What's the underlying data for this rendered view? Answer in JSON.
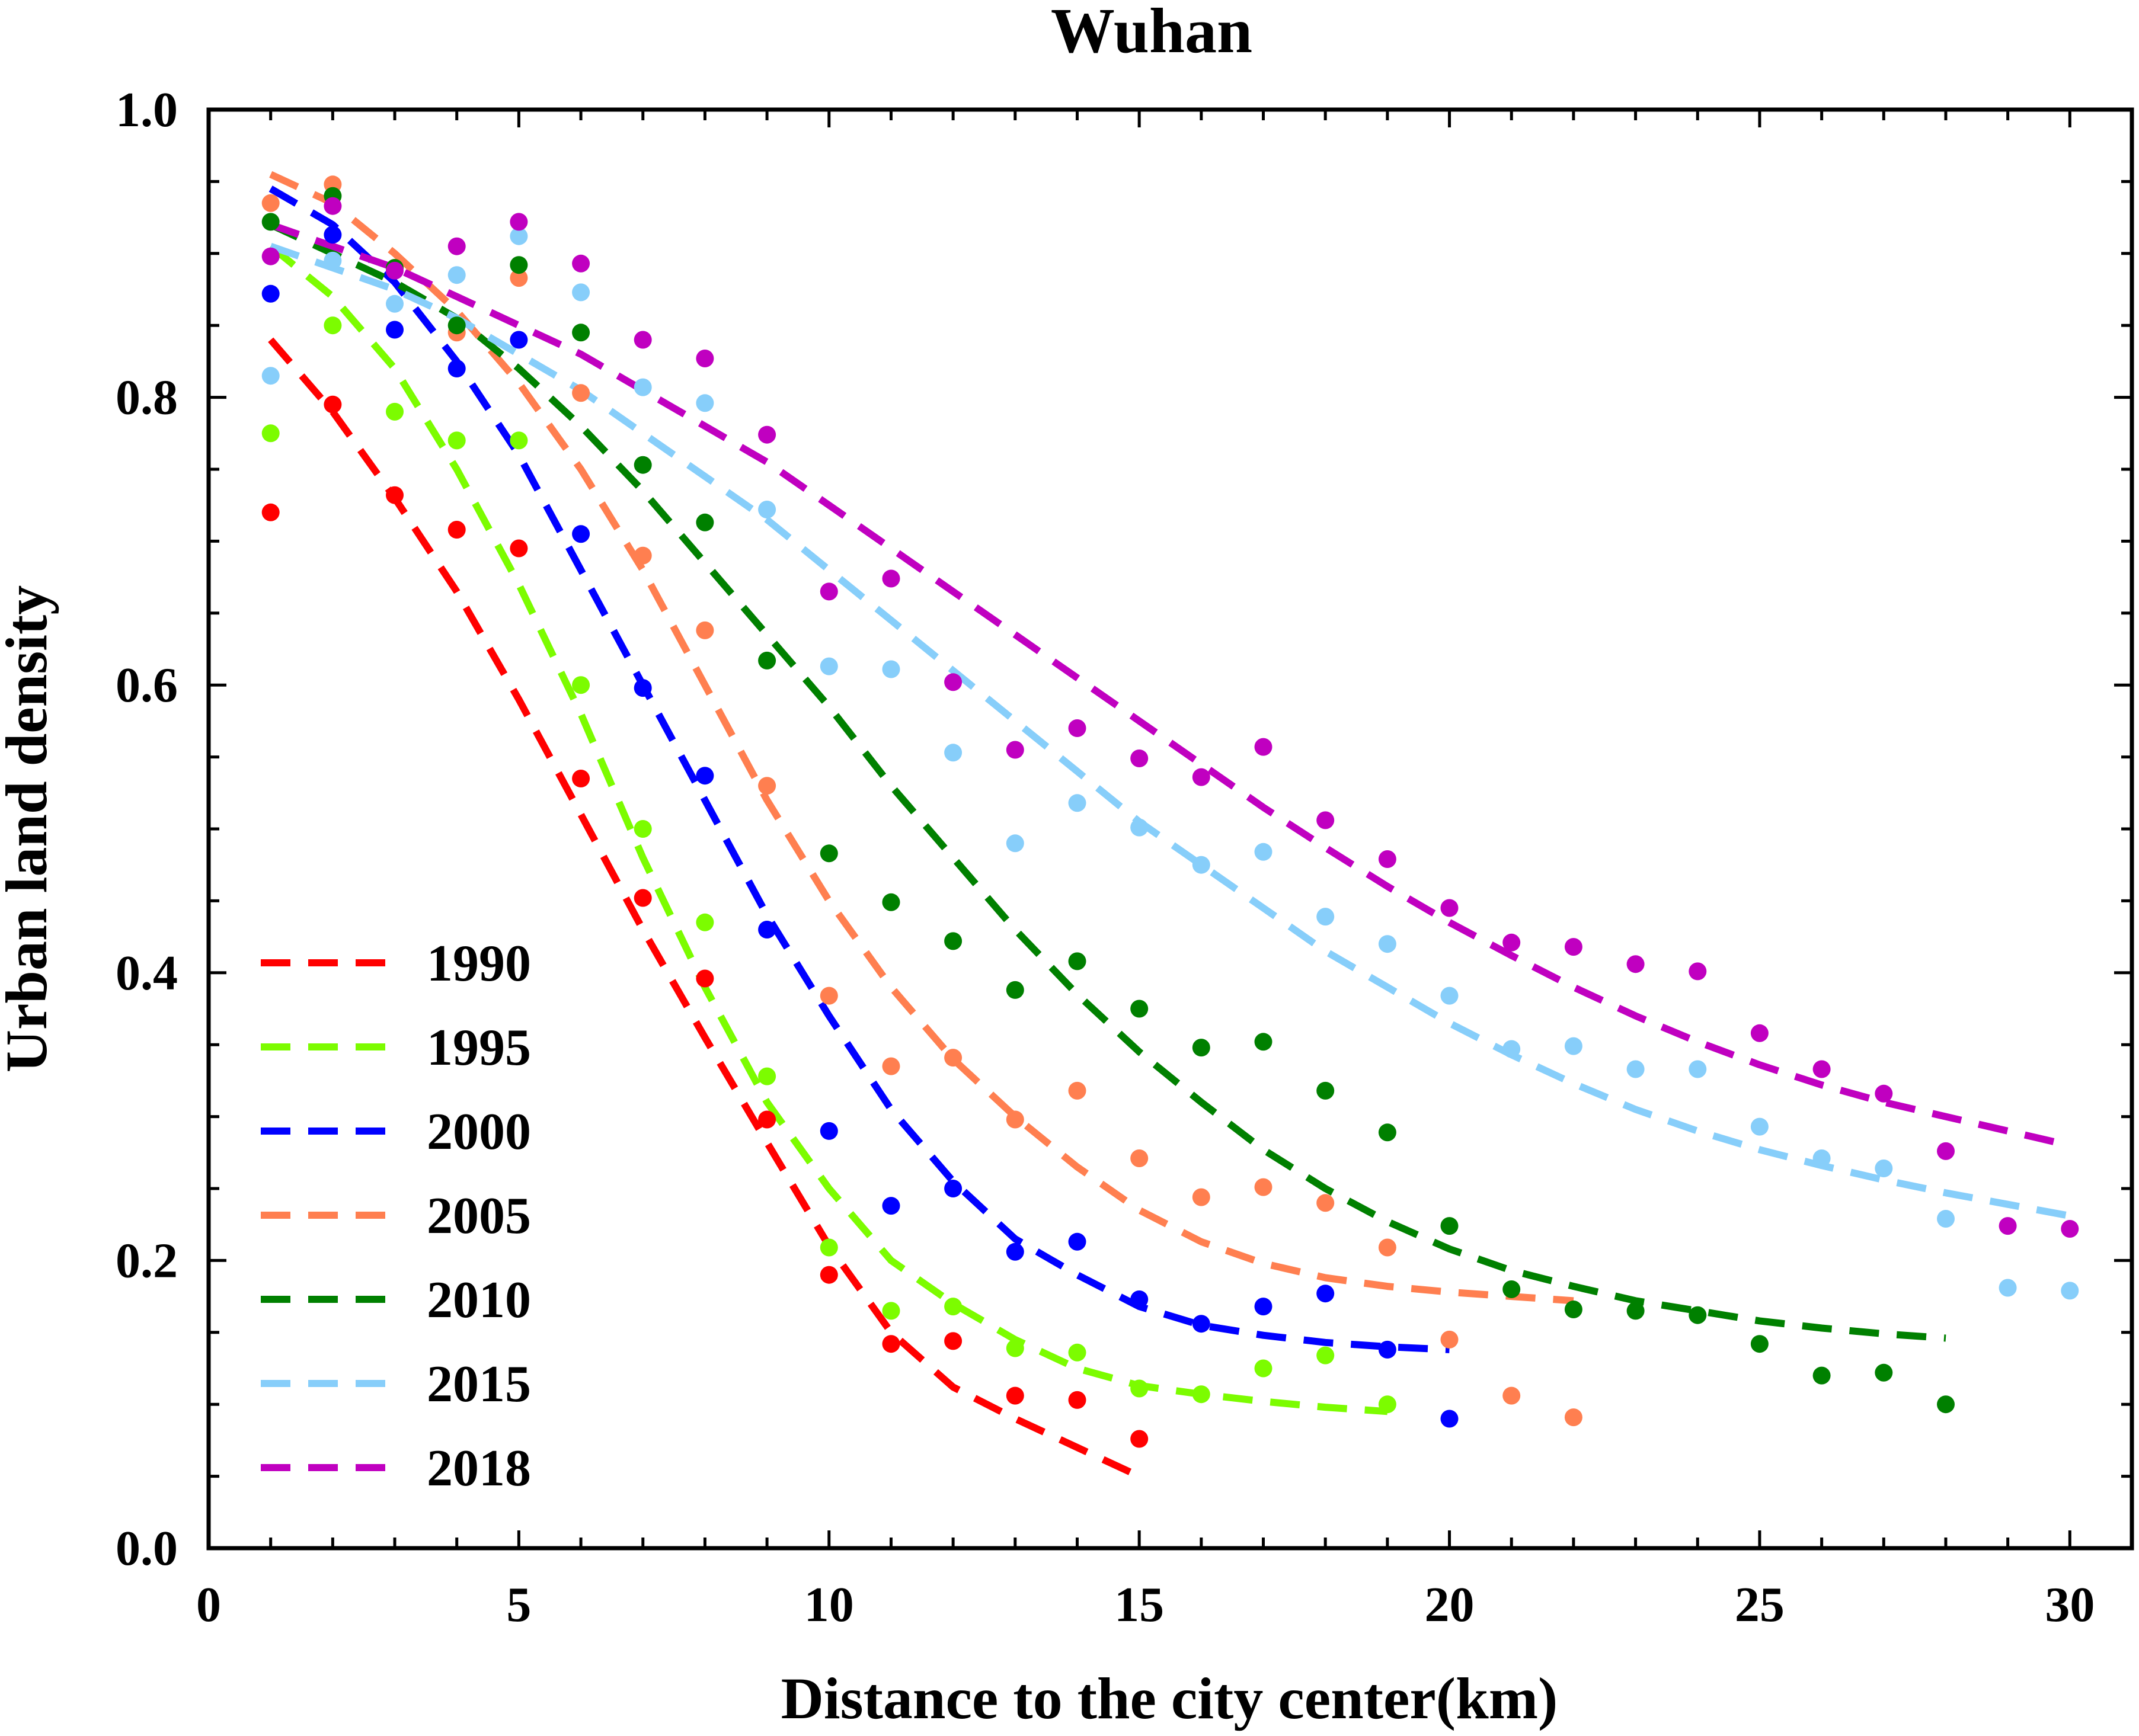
{
  "chart_data": {
    "type": "scatter",
    "title": "Wuhan",
    "xlabel": "Distance to the city center(km)",
    "ylabel": "Urban land density",
    "xlim": [
      0,
      31
    ],
    "ylim": [
      0.0,
      1.0
    ],
    "xticks": [
      0,
      5,
      10,
      15,
      20,
      25,
      30
    ],
    "xtick_labels": [
      "0",
      "5",
      "10",
      "15",
      "20",
      "25",
      "30"
    ],
    "yticks": [
      0.0,
      0.2,
      0.4,
      0.6,
      0.8,
      1.0
    ],
    "ytick_labels": [
      "0.0",
      "0.2",
      "0.4",
      "0.6",
      "0.8",
      "1.0"
    ],
    "grid": false,
    "legend_position": "bottom-left",
    "series": [
      {
        "name": "1990",
        "color": "#ff0000",
        "x": [
          1,
          2,
          3,
          4,
          5,
          6,
          7,
          8,
          9,
          10,
          11,
          12,
          13,
          14,
          15
        ],
        "y": [
          0.72,
          0.795,
          0.732,
          0.708,
          0.695,
          0.535,
          0.452,
          0.396,
          0.298,
          0.19,
          0.142,
          0.144,
          0.106,
          0.103,
          0.076
        ],
        "fit_x": [
          1,
          2,
          3,
          4,
          5,
          6,
          7,
          8,
          9,
          10,
          11,
          12,
          13,
          14,
          15
        ],
        "fit_y": [
          0.84,
          0.79,
          0.73,
          0.665,
          0.59,
          0.51,
          0.43,
          0.355,
          0.282,
          0.21,
          0.15,
          0.112,
          0.09,
          0.07,
          0.05
        ]
      },
      {
        "name": "1995",
        "color": "#7cfc00",
        "x": [
          1,
          2,
          3,
          4,
          5,
          6,
          7,
          8,
          9,
          10,
          11,
          12,
          13,
          14,
          15,
          16,
          17,
          18,
          19
        ],
        "y": [
          0.775,
          0.85,
          0.79,
          0.77,
          0.77,
          0.6,
          0.5,
          0.435,
          0.328,
          0.209,
          0.165,
          0.168,
          0.139,
          0.136,
          0.111,
          0.107,
          0.125,
          0.134,
          0.1
        ],
        "fit_x": [
          1,
          2,
          3,
          4,
          5,
          6,
          7,
          8,
          9,
          10,
          11,
          12,
          13,
          14,
          15,
          16,
          17,
          18,
          19
        ],
        "fit_y": [
          0.905,
          0.87,
          0.82,
          0.75,
          0.67,
          0.58,
          0.48,
          0.39,
          0.31,
          0.25,
          0.2,
          0.17,
          0.145,
          0.125,
          0.113,
          0.107,
          0.102,
          0.098,
          0.095
        ]
      },
      {
        "name": "2000",
        "color": "#0000ff",
        "x": [
          1,
          2,
          3,
          4,
          5,
          6,
          7,
          8,
          9,
          10,
          11,
          12,
          13,
          14,
          15,
          16,
          17,
          18,
          19,
          20
        ],
        "y": [
          0.872,
          0.913,
          0.847,
          0.82,
          0.84,
          0.705,
          0.598,
          0.537,
          0.43,
          0.29,
          0.238,
          0.25,
          0.206,
          0.213,
          0.173,
          0.156,
          0.168,
          0.177,
          0.138,
          0.09
        ],
        "fit_x": [
          1,
          2,
          3,
          4,
          5,
          6,
          7,
          8,
          9,
          10,
          11,
          12,
          13,
          14,
          15,
          16,
          17,
          18,
          19,
          20
        ],
        "fit_y": [
          0.945,
          0.92,
          0.88,
          0.825,
          0.76,
          0.68,
          0.6,
          0.52,
          0.44,
          0.37,
          0.305,
          0.255,
          0.215,
          0.19,
          0.168,
          0.155,
          0.148,
          0.143,
          0.14,
          0.138
        ]
      },
      {
        "name": "2005",
        "color": "#ff7f50",
        "x": [
          1,
          2,
          3,
          4,
          5,
          6,
          7,
          8,
          9,
          10,
          11,
          12,
          13,
          14,
          15,
          16,
          17,
          18,
          19,
          20,
          21,
          22
        ],
        "y": [
          0.935,
          0.948,
          0.89,
          0.845,
          0.883,
          0.803,
          0.69,
          0.638,
          0.53,
          0.384,
          0.335,
          0.341,
          0.298,
          0.318,
          0.271,
          0.244,
          0.251,
          0.24,
          0.209,
          0.145,
          0.106,
          0.091
        ],
        "fit_x": [
          1,
          2,
          3,
          4,
          5,
          6,
          7,
          8,
          9,
          10,
          11,
          12,
          13,
          14,
          15,
          16,
          17,
          18,
          19,
          20,
          21,
          22
        ],
        "fit_y": [
          0.955,
          0.935,
          0.9,
          0.86,
          0.81,
          0.75,
          0.68,
          0.6,
          0.52,
          0.45,
          0.39,
          0.34,
          0.3,
          0.265,
          0.235,
          0.213,
          0.198,
          0.188,
          0.182,
          0.178,
          0.175,
          0.172
        ]
      },
      {
        "name": "2010",
        "color": "#008000",
        "x": [
          1,
          2,
          3,
          4,
          5,
          6,
          7,
          8,
          9,
          10,
          11,
          12,
          13,
          14,
          15,
          16,
          17,
          18,
          19,
          20,
          21,
          22,
          23,
          24,
          25,
          26,
          27,
          28
        ],
        "y": [
          0.922,
          0.94,
          0.89,
          0.85,
          0.892,
          0.845,
          0.753,
          0.713,
          0.617,
          0.483,
          0.449,
          0.422,
          0.388,
          0.408,
          0.375,
          0.348,
          0.352,
          0.318,
          0.289,
          0.224,
          0.18,
          0.166,
          0.165,
          0.162,
          0.142,
          0.12,
          0.122,
          0.1
        ],
        "fit_x": [
          1,
          2,
          3,
          4,
          5,
          6,
          7,
          8,
          9,
          10,
          11,
          12,
          13,
          14,
          15,
          16,
          17,
          18,
          19,
          20,
          21,
          22,
          23,
          24,
          25,
          26,
          27,
          28
        ],
        "fit_y": [
          0.92,
          0.9,
          0.88,
          0.855,
          0.82,
          0.78,
          0.735,
          0.685,
          0.635,
          0.585,
          0.53,
          0.48,
          0.43,
          0.385,
          0.345,
          0.31,
          0.277,
          0.25,
          0.227,
          0.208,
          0.193,
          0.182,
          0.172,
          0.165,
          0.158,
          0.153,
          0.149,
          0.146
        ]
      },
      {
        "name": "2015",
        "color": "#87cefa",
        "x": [
          1,
          2,
          3,
          4,
          5,
          6,
          7,
          8,
          9,
          10,
          11,
          12,
          13,
          14,
          15,
          16,
          17,
          18,
          19,
          20,
          21,
          22,
          23,
          24,
          25,
          26,
          27,
          28,
          29,
          30
        ],
        "y": [
          0.815,
          0.895,
          0.865,
          0.885,
          0.912,
          0.873,
          0.807,
          0.796,
          0.722,
          0.613,
          0.611,
          0.553,
          0.49,
          0.518,
          0.501,
          0.475,
          0.484,
          0.439,
          0.42,
          0.384,
          0.347,
          0.349,
          0.333,
          0.333,
          0.293,
          0.271,
          0.264,
          0.229,
          0.181,
          0.179
        ],
        "fit_x": [
          1,
          2,
          3,
          4,
          5,
          6,
          7,
          8,
          9,
          10,
          11,
          12,
          13,
          14,
          15,
          16,
          17,
          18,
          19,
          20,
          21,
          22,
          23,
          24,
          25,
          26,
          27,
          28,
          29,
          30
        ],
        "fit_y": [
          0.905,
          0.89,
          0.875,
          0.855,
          0.83,
          0.805,
          0.775,
          0.745,
          0.715,
          0.68,
          0.645,
          0.61,
          0.575,
          0.54,
          0.505,
          0.475,
          0.445,
          0.415,
          0.39,
          0.365,
          0.343,
          0.323,
          0.305,
          0.29,
          0.277,
          0.266,
          0.256,
          0.247,
          0.239,
          0.231
        ]
      },
      {
        "name": "2018",
        "color": "#c000c0",
        "x": [
          1,
          2,
          3,
          4,
          5,
          6,
          7,
          8,
          9,
          10,
          11,
          12,
          13,
          14,
          15,
          16,
          17,
          18,
          19,
          20,
          21,
          22,
          23,
          24,
          25,
          26,
          27,
          28,
          29,
          30
        ],
        "y": [
          0.898,
          0.933,
          0.888,
          0.905,
          0.922,
          0.893,
          0.84,
          0.827,
          0.774,
          0.665,
          0.674,
          0.602,
          0.555,
          0.57,
          0.549,
          0.536,
          0.557,
          0.506,
          0.479,
          0.445,
          0.421,
          0.418,
          0.406,
          0.401,
          0.358,
          0.333,
          0.316,
          0.276,
          0.224,
          0.222
        ],
        "fit_x": [
          1,
          2,
          3,
          4,
          5,
          6,
          7,
          8,
          9,
          10,
          11,
          12,
          13,
          14,
          15,
          16,
          17,
          18,
          19,
          20,
          21,
          22,
          23,
          24,
          25,
          26,
          27,
          28,
          29,
          30
        ],
        "fit_y": [
          0.92,
          0.905,
          0.89,
          0.87,
          0.85,
          0.83,
          0.805,
          0.78,
          0.755,
          0.725,
          0.695,
          0.665,
          0.635,
          0.605,
          0.575,
          0.545,
          0.515,
          0.487,
          0.46,
          0.435,
          0.412,
          0.39,
          0.37,
          0.352,
          0.336,
          0.322,
          0.31,
          0.3,
          0.29,
          0.28
        ]
      }
    ]
  }
}
